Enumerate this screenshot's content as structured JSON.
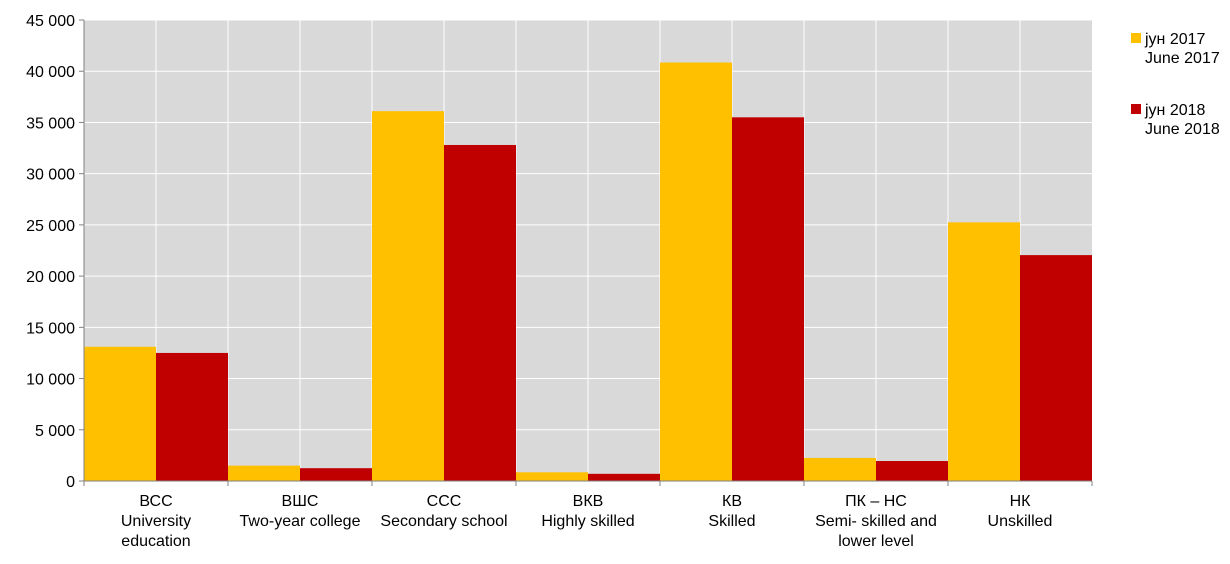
{
  "chart_data": {
    "type": "bar",
    "categories": [
      [
        "ВСС",
        "University",
        "education"
      ],
      [
        "ВШС",
        "Two-year college"
      ],
      [
        "ССС",
        "Secondary school"
      ],
      [
        "ВКВ",
        "Highly skilled"
      ],
      [
        "КВ",
        "Skilled"
      ],
      [
        "ПК – НС",
        "Semi- skilled and",
        "lower level"
      ],
      [
        "НК",
        "Unskilled"
      ]
    ],
    "series": [
      {
        "name": [
          "јун 2017",
          "June 2017"
        ],
        "color": "#FFC000",
        "values": [
          13100,
          1500,
          36100,
          850,
          40850,
          2250,
          25250
        ]
      },
      {
        "name": [
          "јун 2018",
          "June 2018"
        ],
        "color": "#C00000",
        "values": [
          12500,
          1250,
          32800,
          700,
          35500,
          1950,
          22050
        ]
      }
    ],
    "ylim": [
      0,
      45000
    ],
    "yticks": [
      0,
      5000,
      10000,
      15000,
      20000,
      25000,
      30000,
      35000,
      40000,
      45000
    ],
    "ytick_labels": [
      "0",
      "5 000",
      "10 000",
      "15 000",
      "20 000",
      "25 000",
      "30 000",
      "35 000",
      "40 000",
      "45 000"
    ],
    "grid": true,
    "plot_background": "#D9D9D9",
    "legend_position": "right"
  }
}
